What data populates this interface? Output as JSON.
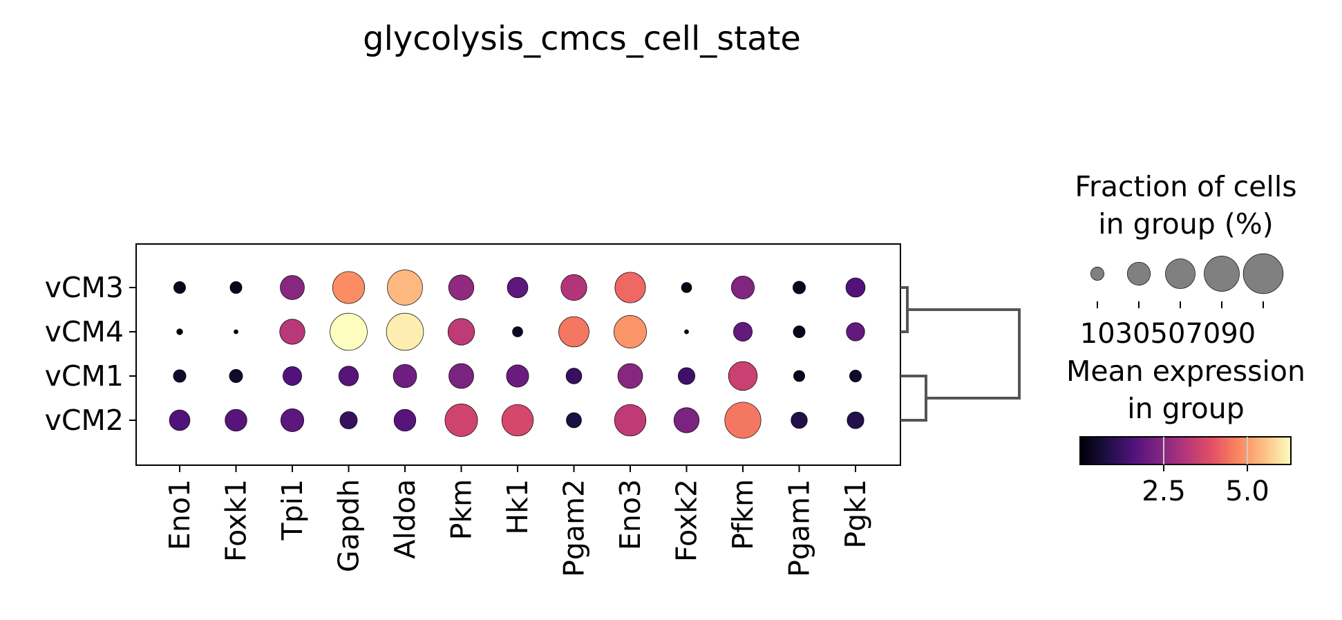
{
  "chart_data": {
    "type": "dotplot",
    "title": "glycolysis_cmcs_cell_state",
    "genes": [
      "Eno1",
      "Foxk1",
      "Tpi1",
      "Gapdh",
      "Aldoa",
      "Pkm",
      "Hk1",
      "Pgam2",
      "Eno3",
      "Foxk2",
      "Pfkm",
      "Pgam1",
      "Pgk1"
    ],
    "groups": [
      "vCM3",
      "vCM4",
      "vCM1",
      "vCM2"
    ],
    "fraction_percent": [
      [
        8,
        8,
        33,
        58,
        70,
        36,
        24,
        38,
        53,
        6,
        30,
        9,
        21
      ],
      [
        2,
        1,
        36,
        78,
        78,
        40,
        6,
        52,
        60,
        1,
        20,
        8,
        19
      ],
      [
        9,
        10,
        20,
        22,
        31,
        35,
        28,
        14,
        35,
        16,
        47,
        7,
        8
      ],
      [
        24,
        27,
        30,
        17,
        27,
        60,
        56,
        13,
        56,
        36,
        74,
        15,
        16
      ]
    ],
    "mean_expression": [
      [
        0.3,
        0.3,
        2.5,
        4.8,
        5.4,
        2.6,
        1.8,
        3.1,
        4.3,
        0.2,
        2.4,
        0.3,
        1.6
      ],
      [
        0.1,
        0.1,
        3.2,
        6.3,
        6.1,
        3.3,
        0.4,
        4.5,
        4.9,
        0.1,
        1.9,
        0.3,
        1.9
      ],
      [
        0.5,
        0.5,
        1.6,
        1.7,
        2.1,
        2.3,
        2.0,
        1.2,
        2.5,
        1.3,
        3.5,
        0.3,
        0.5
      ],
      [
        1.6,
        1.7,
        1.8,
        1.2,
        1.7,
        3.6,
        3.7,
        0.8,
        3.3,
        2.3,
        4.5,
        0.9,
        0.9
      ]
    ],
    "size_legend": {
      "title_lines": [
        "Fraction of cells",
        "in group (%)"
      ],
      "ticks": [
        10,
        30,
        50,
        70,
        90
      ],
      "tick_text": "1030507090",
      "color": "#808080"
    },
    "color_legend": {
      "title_lines": [
        "Mean expression",
        "in group"
      ],
      "colormap": "magma",
      "range": [
        0.0,
        6.3
      ],
      "ticks": [
        2.5,
        5.0
      ],
      "tick_labels": [
        "2.5",
        "5.0"
      ]
    },
    "dendrogram": {
      "leaf_order": [
        "vCM3",
        "vCM4",
        "vCM1",
        "vCM2"
      ],
      "pairs": [
        [
          "vCM3",
          "vCM4"
        ],
        [
          "vCM1",
          "vCM2"
        ]
      ],
      "color": "#555555"
    }
  }
}
